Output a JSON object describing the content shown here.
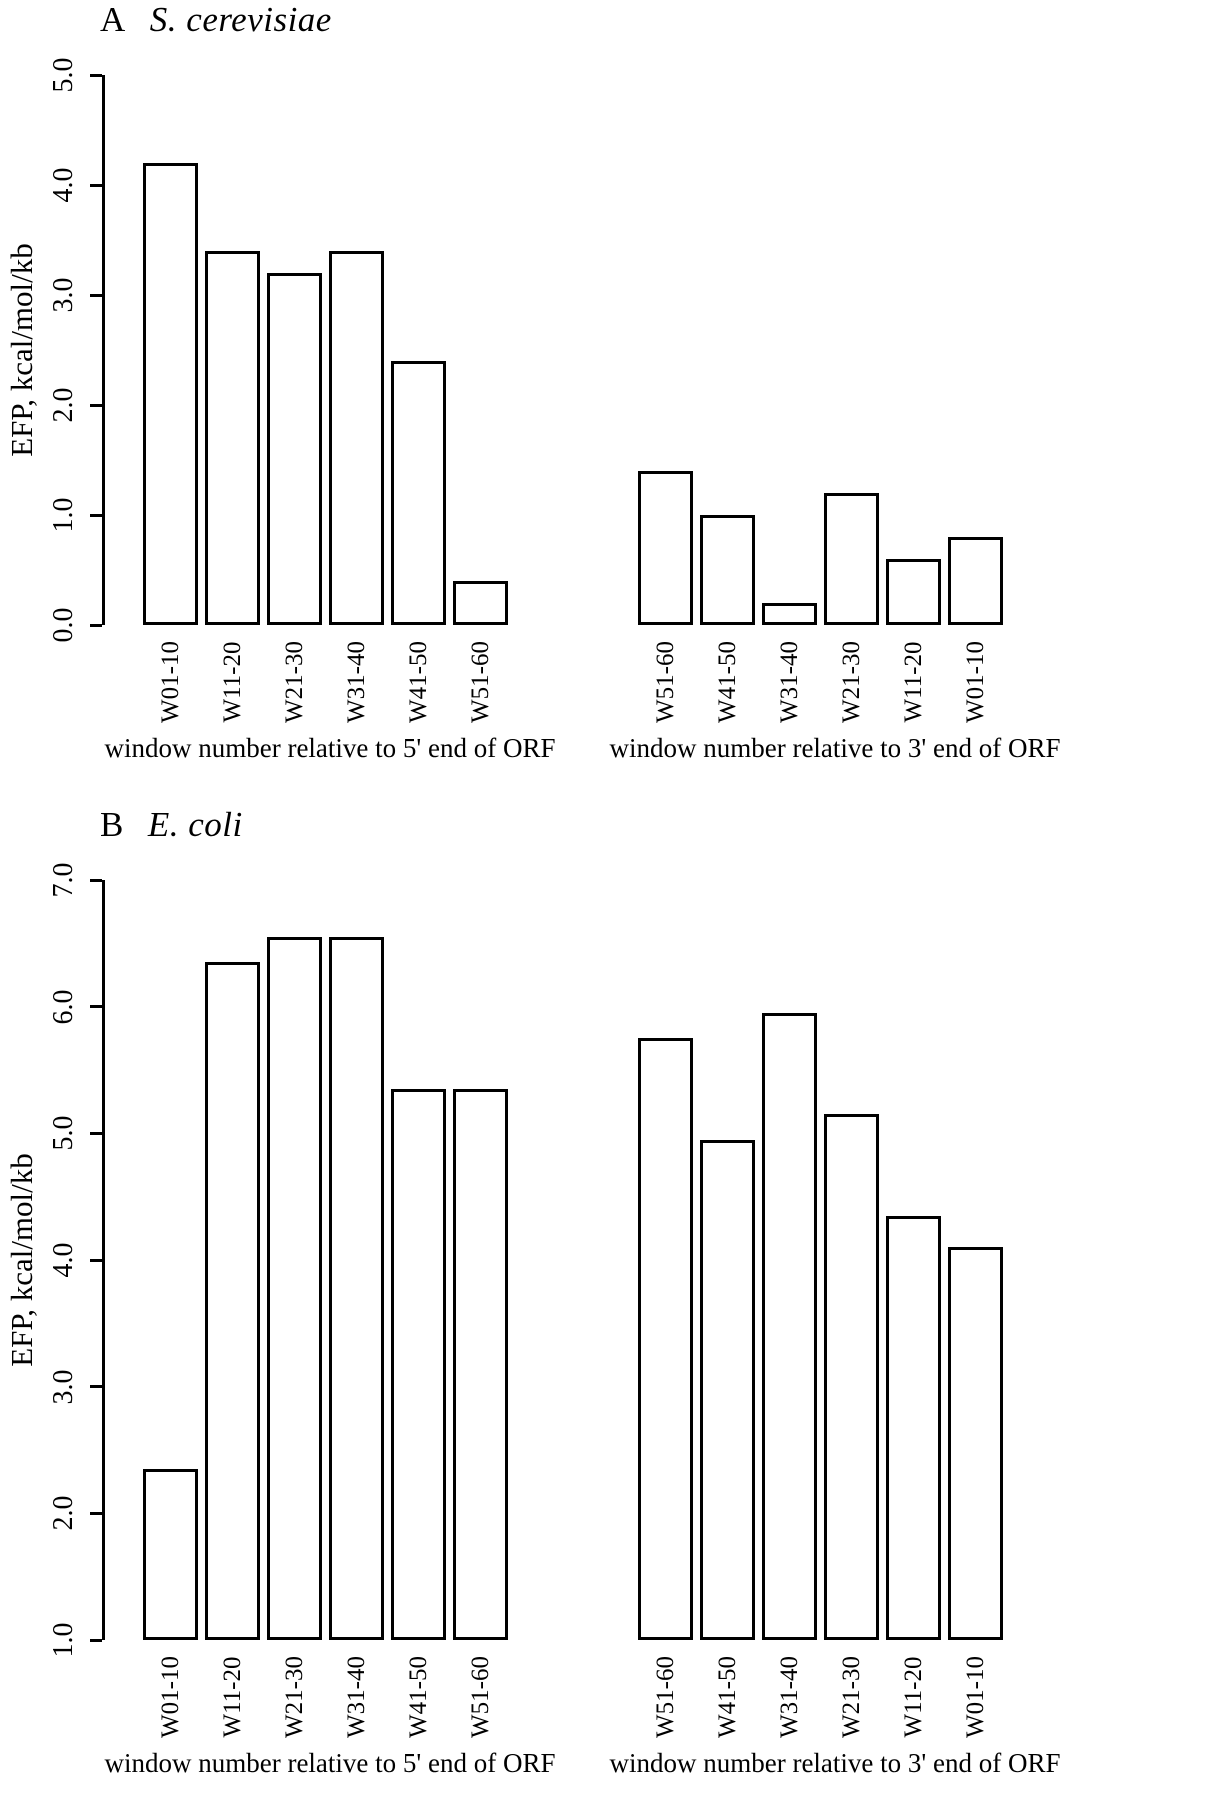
{
  "chart_data": [
    {
      "type": "bar",
      "panel_label": "A",
      "title": "S. cerevisiae",
      "ylabel": "EFP, kcal/mol/kb",
      "ylim": [
        0.0,
        5.0
      ],
      "yticks": [
        0.0,
        1.0,
        2.0,
        3.0,
        4.0,
        5.0
      ],
      "ytick_labels": [
        "0.0",
        "1.0",
        "2.0",
        "3.0",
        "4.0",
        "5.0"
      ],
      "bar_fill": "#ffffff",
      "bar_stroke": "#000000",
      "grid": false,
      "legend": false,
      "groups": [
        {
          "xlabel": "window number relative to 5' end of ORF",
          "categories": [
            "W01-10",
            "W11-20",
            "W21-30",
            "W31-40",
            "W41-50",
            "W51-60"
          ],
          "values": [
            4.2,
            3.4,
            3.2,
            3.4,
            2.4,
            0.4
          ]
        },
        {
          "xlabel": "window number relative to 3' end of ORF",
          "categories": [
            "W51-60",
            "W41-50",
            "W31-40",
            "W21-30",
            "W11-20",
            "W01-10"
          ],
          "values": [
            1.4,
            1.0,
            0.2,
            1.2,
            0.6,
            0.8
          ]
        }
      ]
    },
    {
      "type": "bar",
      "panel_label": "B",
      "title": "E. coli",
      "ylabel": "EFP, kcal/mol/kb",
      "ylim": [
        1.0,
        7.0
      ],
      "yticks": [
        1.0,
        2.0,
        3.0,
        4.0,
        5.0,
        6.0,
        7.0
      ],
      "ytick_labels": [
        "1.0",
        "2.0",
        "3.0",
        "4.0",
        "5.0",
        "6.0",
        "7.0"
      ],
      "bar_fill": "#ffffff",
      "bar_stroke": "#000000",
      "grid": false,
      "legend": false,
      "groups": [
        {
          "xlabel": "window number relative to 5' end of ORF",
          "categories": [
            "W01-10",
            "W11-20",
            "W21-30",
            "W31-40",
            "W41-50",
            "W51-60"
          ],
          "values": [
            2.35,
            6.35,
            6.55,
            6.55,
            5.35,
            5.35
          ]
        },
        {
          "xlabel": "window number relative to 3' end of ORF",
          "categories": [
            "W51-60",
            "W41-50",
            "W31-40",
            "W21-30",
            "W11-20",
            "W01-10"
          ],
          "values": [
            5.75,
            4.95,
            5.95,
            5.15,
            4.35,
            4.1
          ]
        }
      ]
    }
  ]
}
